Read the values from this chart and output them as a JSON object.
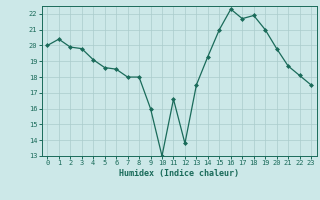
{
  "x": [
    0,
    1,
    2,
    3,
    4,
    5,
    6,
    7,
    8,
    9,
    10,
    11,
    12,
    13,
    14,
    15,
    16,
    17,
    18,
    19,
    20,
    21,
    22,
    23
  ],
  "y": [
    20.0,
    20.4,
    19.9,
    19.8,
    19.1,
    18.6,
    18.5,
    18.0,
    18.0,
    16.0,
    13.0,
    16.6,
    13.8,
    17.5,
    19.3,
    21.0,
    22.3,
    21.7,
    21.9,
    21.0,
    19.8,
    18.7,
    18.1,
    17.5
  ],
  "xlim": [
    -0.5,
    23.5
  ],
  "ylim": [
    13,
    22.5
  ],
  "yticks": [
    13,
    14,
    15,
    16,
    17,
    18,
    19,
    20,
    21,
    22
  ],
  "xticks": [
    0,
    1,
    2,
    3,
    4,
    5,
    6,
    7,
    8,
    9,
    10,
    11,
    12,
    13,
    14,
    15,
    16,
    17,
    18,
    19,
    20,
    21,
    22,
    23
  ],
  "xlabel": "Humidex (Indice chaleur)",
  "line_color": "#1a6b5a",
  "marker": "D",
  "marker_size": 2,
  "bg_color": "#cce8e8",
  "grid_color": "#aacccc",
  "tick_label_color": "#1a6b5a",
  "axis_color": "#1a6b5a",
  "tick_fontsize": 5.0,
  "xlabel_fontsize": 6.0
}
